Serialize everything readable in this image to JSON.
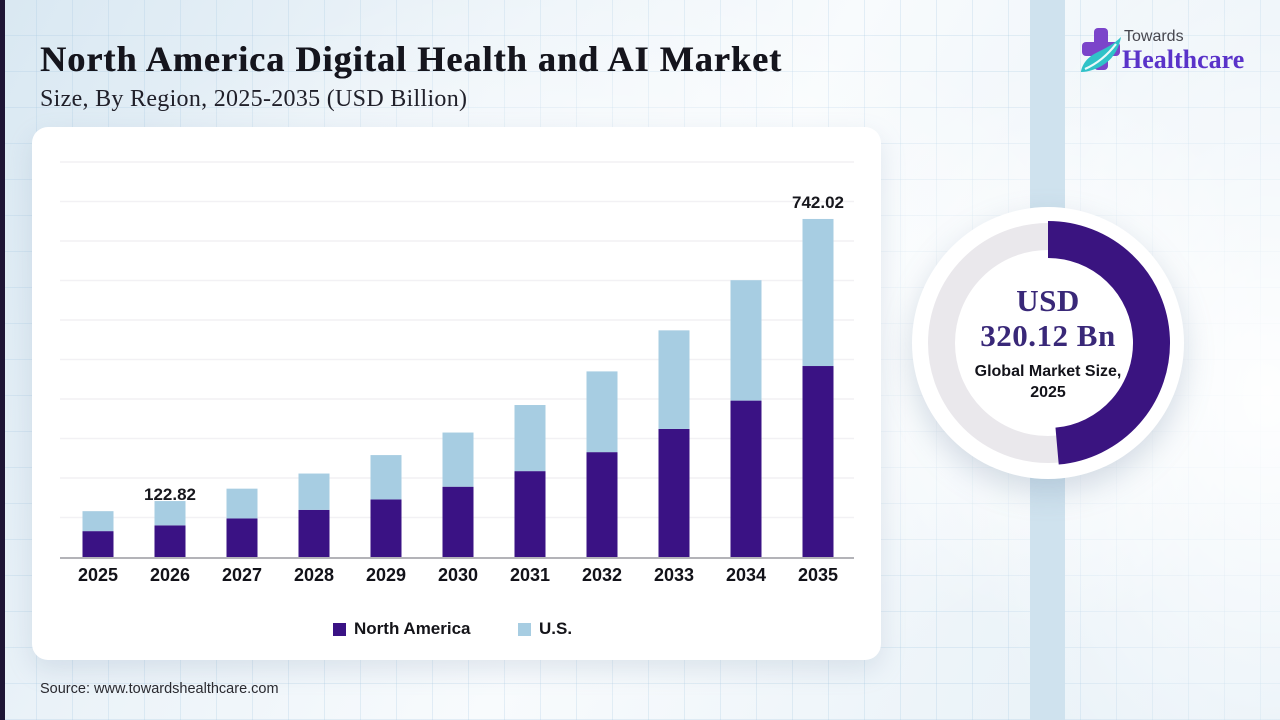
{
  "header": {
    "title": "North America Digital Health and AI Market",
    "subtitle": "Size, By Region, 2025-2035 (USD Billion)"
  },
  "logo": {
    "line1": "Towards",
    "line2": "Healthcare",
    "icon": "medical-cross-leaf"
  },
  "chart_data": {
    "type": "bar",
    "stacked": true,
    "title": "North America Digital Health and AI Market Size, By Region, 2025-2035 (USD Billion)",
    "categories": [
      "2025",
      "2026",
      "2027",
      "2028",
      "2029",
      "2030",
      "2031",
      "2032",
      "2033",
      "2034",
      "2035"
    ],
    "series": [
      {
        "name": "North America",
        "color": "#3A1284",
        "values": [
          56.8,
          69.4,
          84.7,
          103.5,
          126.4,
          154.3,
          188.5,
          230.2,
          281.1,
          343.3,
          419.2
        ]
      },
      {
        "name": "U.S.",
        "color": "#A7CDE2",
        "values": [
          43.8,
          53.4,
          65.3,
          79.7,
          97.3,
          118.9,
          145.1,
          177.2,
          216.4,
          264.3,
          322.8
        ]
      }
    ],
    "totals": [
      100.6,
      122.82,
      150.0,
      183.2,
      223.7,
      273.2,
      333.6,
      407.4,
      497.5,
      607.6,
      742.02
    ],
    "data_labels": {
      "2026": "122.82",
      "2035": "742.02"
    },
    "ylim": [
      0,
      880
    ],
    "grid": true,
    "legend_position": "bottom"
  },
  "donut": {
    "line1": "USD",
    "line2": "320.12 Bn",
    "caption_line1": "Global Market Size,",
    "caption_line2": "2025",
    "fraction": 0.486,
    "arc_color": "#3A1480",
    "track_color": "#EAE8EC"
  },
  "source": "Source: www.towardshealthcare.com",
  "colors": {
    "page_accent_left": "#1e1535",
    "page_accent_right": "#cfe2ee",
    "title_text": "#15151d",
    "logo_purple": "#5a33c9",
    "leaf_teal": "#2fc2c8"
  }
}
